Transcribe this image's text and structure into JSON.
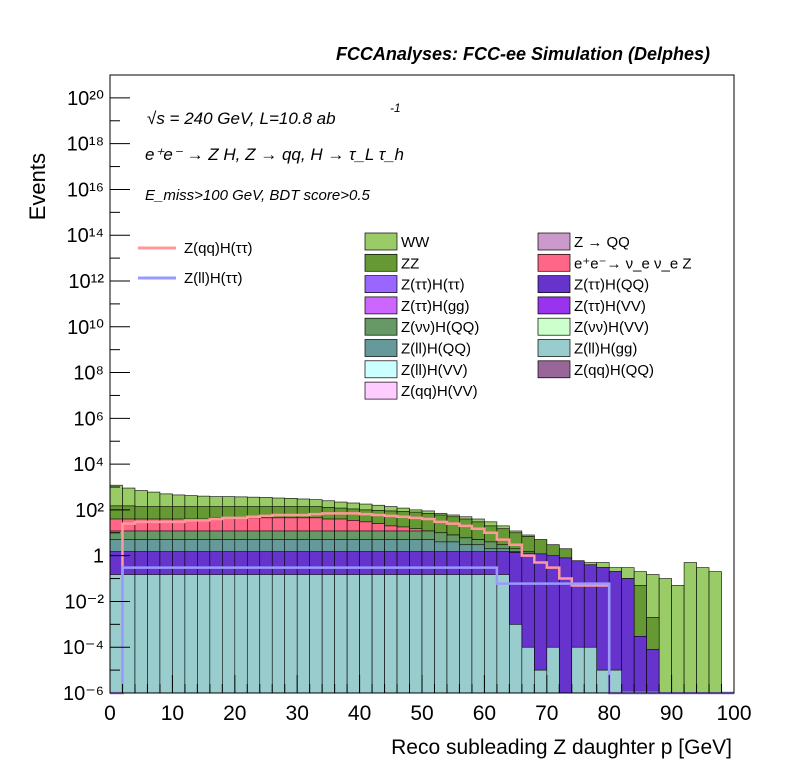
{
  "header": "FCCAnalyses: FCC-ee Simulation (Delphes)",
  "annotations": {
    "energy": "√s = 240 GeV, L=10.8 ab",
    "energy_exp": "-1",
    "process": "e⁺e⁻ → Z H, Z → qq, H → τ_L τ_h",
    "selection": "E_miss>100 GeV, BDT score>0.5"
  },
  "chart_data": {
    "type": "stacked-histogram",
    "title": "FCCAnalyses: FCC-ee Simulation (Delphes)",
    "xlabel": "Reco subleading Z daughter p [GeV]",
    "ylabel": "Events",
    "xlim": [
      0,
      100
    ],
    "ylim": [
      1e-06,
      1e+21
    ],
    "yscale": "log",
    "x_ticks": [
      "0",
      "10",
      "20",
      "30",
      "40",
      "50",
      "60",
      "70",
      "80",
      "90",
      "100"
    ],
    "y_ticks": [
      "10⁻⁶",
      "10⁻⁴",
      "10⁻²",
      "1",
      "10²",
      "10⁴",
      "10⁶",
      "10⁸",
      "10¹⁰",
      "10¹²",
      "10¹⁴",
      "10¹⁶",
      "10¹⁸",
      "10²⁰"
    ],
    "y_tick_values": [
      1e-06,
      0.0001,
      0.01,
      1,
      100.0,
      10000.0,
      1000000.0,
      100000000.0,
      10000000000.0,
      1000000000000.0,
      100000000000000.0,
      1e+16,
      1e+18,
      1e+20
    ],
    "bin_width": 2,
    "stack_totals": [
      {
        "name": "WW",
        "color": "#99cc66",
        "values": [
          1200,
          900,
          700,
          600,
          500,
          450,
          420,
          400,
          380,
          380,
          370,
          360,
          350,
          330,
          320,
          300,
          280,
          250,
          220,
          200,
          180,
          160,
          140,
          120,
          100,
          90,
          70,
          60,
          50,
          40,
          30,
          20,
          12,
          8,
          5,
          3,
          2,
          0.6,
          0.5,
          0.5,
          0.3,
          0.3,
          0.2,
          0.15,
          0.1,
          0.05,
          0.5,
          0.3,
          0.2,
          0
        ]
      },
      {
        "name": "ZZ",
        "color": "#669933",
        "values": [
          150,
          150,
          140,
          140,
          140,
          140,
          140,
          140,
          140,
          140,
          140,
          140,
          140,
          140,
          140,
          140,
          140,
          130,
          120,
          110,
          100,
          95,
          90,
          85,
          80,
          70,
          60,
          50,
          40,
          30,
          20,
          15,
          10,
          7,
          5,
          3,
          2,
          0.5,
          0.4,
          0.3,
          0.2,
          0.1,
          0.05,
          0.002,
          0,
          0,
          0,
          0,
          0,
          0
        ]
      },
      {
        "name": "e⁺e⁻→ ν_e ν_e Z",
        "color": "#ff6688",
        "values": [
          40,
          40,
          40,
          40,
          40,
          40,
          40,
          40,
          45,
          45,
          45,
          45,
          45,
          45,
          45,
          45,
          45,
          40,
          40,
          35,
          30,
          25,
          20,
          18,
          15,
          12,
          10,
          8,
          6,
          5,
          3,
          2,
          1,
          0.5,
          0.3,
          0.15,
          0.08,
          0.05,
          0.003,
          0.002,
          0.002,
          0,
          0,
          0,
          0,
          0,
          0,
          0,
          0,
          0
        ]
      },
      {
        "name": "Z(νν)H(QQ)",
        "color": "#669966",
        "values": [
          12,
          12,
          12,
          12,
          12,
          12,
          12,
          12,
          12,
          12,
          12,
          12,
          12,
          12,
          12,
          12,
          12,
          12,
          12,
          12,
          12,
          12,
          12,
          12,
          12,
          12,
          10,
          8,
          6,
          5,
          4,
          3,
          2,
          1.5,
          1,
          0.6,
          0.3,
          0.2,
          0.1,
          0.05,
          0.02,
          0.001,
          0,
          0,
          0,
          0,
          0,
          0,
          0,
          0
        ]
      },
      {
        "name": "Z(ll)H(QQ)",
        "color": "#669999",
        "values": [
          5,
          5,
          5,
          5,
          5,
          5,
          5,
          5,
          5,
          5,
          5,
          5,
          5,
          5,
          5,
          5,
          5,
          5,
          5,
          5,
          5,
          5,
          5,
          5,
          5,
          5,
          4,
          4,
          3,
          3,
          2,
          2,
          1.5,
          1,
          0.8,
          0.5,
          0.3,
          0.1,
          0.05,
          0.02,
          0.01,
          0,
          0,
          0,
          0,
          0,
          0,
          0,
          0,
          0
        ]
      },
      {
        "name": "Z(ττ)H(QQ)",
        "color": "#6633cc",
        "values": [
          1.5,
          1.5,
          1.5,
          1.5,
          1.5,
          1.5,
          1.5,
          1.5,
          1.5,
          1.5,
          1.5,
          1.5,
          1.5,
          1.5,
          1.5,
          1.5,
          1.5,
          1.5,
          1.5,
          1.5,
          1.5,
          1.5,
          1.5,
          1.5,
          1.5,
          1.5,
          1.5,
          1.5,
          1.5,
          1.5,
          1.5,
          1.5,
          1.4,
          1.3,
          1.2,
          1.0,
          0.8,
          0.6,
          0.4,
          0.3,
          0.2,
          0.1,
          0.0003,
          8e-05,
          0,
          0,
          0,
          0,
          0,
          0
        ]
      },
      {
        "name": "Z(ll)H(gg)",
        "color": "#99cccc",
        "values": [
          0.15,
          0.15,
          0.15,
          0.15,
          0.15,
          0.15,
          0.15,
          0.15,
          0.15,
          0.15,
          0.15,
          0.15,
          0.15,
          0.15,
          0.15,
          0.15,
          0.15,
          0.15,
          0.15,
          0.15,
          0.15,
          0.15,
          0.15,
          0.15,
          0.15,
          0.15,
          0.15,
          0.15,
          0.15,
          0.15,
          0.15,
          0.15,
          0.001,
          0.0001,
          1e-05,
          0.0001,
          1e-06,
          0.0001,
          0.0001,
          1e-05,
          1e-05,
          0,
          0,
          0,
          0,
          0,
          0,
          0,
          0,
          0
        ]
      }
    ],
    "legend": {
      "signal": [
        {
          "name": "Z(qq)H(ττ)",
          "color": "#ff9999"
        },
        {
          "name": "Z(ll)H(ττ)",
          "color": "#9999ff"
        }
      ],
      "backgrounds": [
        {
          "name": "WW",
          "color": "#99cc66"
        },
        {
          "name": "Z → QQ",
          "color": "#cc99cc"
        },
        {
          "name": "ZZ",
          "color": "#669933"
        },
        {
          "name": "e⁺e⁻→ ν_e ν_e Z",
          "color": "#ff6688"
        },
        {
          "name": "Z(ττ)H(ττ)",
          "color": "#9966ff"
        },
        {
          "name": "Z(ττ)H(QQ)",
          "color": "#6633cc"
        },
        {
          "name": "Z(ττ)H(gg)",
          "color": "#cc66ff"
        },
        {
          "name": "Z(ττ)H(VV)",
          "color": "#9933ee"
        },
        {
          "name": "Z(νν)H(QQ)",
          "color": "#669966"
        },
        {
          "name": "Z(νν)H(VV)",
          "color": "#ccffcc"
        },
        {
          "name": "Z(ll)H(QQ)",
          "color": "#669999"
        },
        {
          "name": "Z(ll)H(gg)",
          "color": "#99cccc"
        },
        {
          "name": "Z(ll)H(VV)",
          "color": "#ccffff"
        },
        {
          "name": "Z(qq)H(QQ)",
          "color": "#996699"
        },
        {
          "name": "Z(qq)H(VV)",
          "color": "#ffccff"
        }
      ]
    },
    "signal_lines": [
      {
        "name": "Z(qq)H(ττ)",
        "color": "#ff9999",
        "values": [
          1e-06,
          25,
          30,
          30,
          30,
          30,
          35,
          35,
          40,
          45,
          45,
          50,
          55,
          60,
          60,
          60,
          65,
          70,
          70,
          70,
          65,
          60,
          55,
          50,
          45,
          40,
          30,
          25,
          20,
          15,
          10,
          5,
          3,
          1,
          0.5,
          0.3,
          0.1,
          0.05,
          0.05,
          0.05,
          1e-06,
          0,
          0,
          0,
          0,
          0,
          0,
          0,
          0,
          0
        ]
      },
      {
        "name": "Z(ll)H(ττ)",
        "color": "#9999ff",
        "values": [
          1e-06,
          0.3,
          0.3,
          0.3,
          0.3,
          0.3,
          0.3,
          0.3,
          0.3,
          0.3,
          0.3,
          0.3,
          0.3,
          0.3,
          0.3,
          0.3,
          0.3,
          0.3,
          0.3,
          0.3,
          0.3,
          0.3,
          0.3,
          0.3,
          0.3,
          0.3,
          0.3,
          0.3,
          0.3,
          0.3,
          0.3,
          0.06,
          0.06,
          0.06,
          0.06,
          0.06,
          0.06,
          0.06,
          0.06,
          0.06,
          1e-06,
          0,
          0,
          0,
          0,
          0,
          0,
          0,
          0,
          0
        ]
      }
    ]
  }
}
